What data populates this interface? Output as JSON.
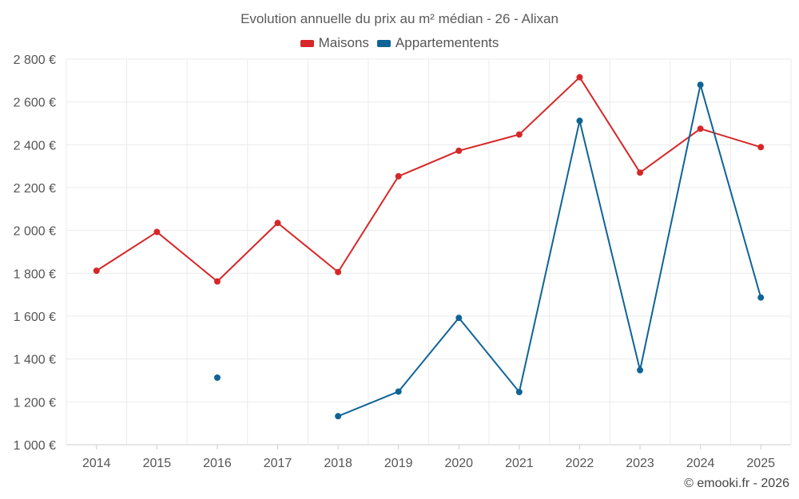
{
  "title": "Evolution annuelle du prix au m² médian - 26 - Alixan",
  "credit": "© emooki.fr - 2026",
  "chart_data": {
    "type": "line",
    "title": "Evolution annuelle du prix au m² médian - 26 - Alixan",
    "xlabel": "",
    "ylabel": "",
    "categories": [
      "2014",
      "2015",
      "2016",
      "2017",
      "2018",
      "2019",
      "2020",
      "2021",
      "2022",
      "2023",
      "2024",
      "2025"
    ],
    "ylim": [
      1000,
      2800
    ],
    "yticks": [
      1000,
      1200,
      1400,
      1600,
      1800,
      2000,
      2200,
      2400,
      2600,
      2800
    ],
    "ytick_labels": [
      "1 000 €",
      "1 200 €",
      "1 400 €",
      "1 600 €",
      "1 800 €",
      "2 000 €",
      "2 200 €",
      "2 400 €",
      "2 600 €",
      "2 800 €"
    ],
    "grid": true,
    "legend_position": "top-center",
    "series": [
      {
        "name": "Maisons",
        "color": "#d62728",
        "values": [
          1812,
          1993,
          1762,
          2035,
          1806,
          2253,
          2372,
          2448,
          2715,
          2270,
          2475,
          2389
        ]
      },
      {
        "name": "Appartementents",
        "color": "#0f6496",
        "values": [
          null,
          null,
          1313,
          null,
          1133,
          1248,
          1592,
          1246,
          2512,
          1348,
          2680,
          1687
        ]
      }
    ]
  }
}
